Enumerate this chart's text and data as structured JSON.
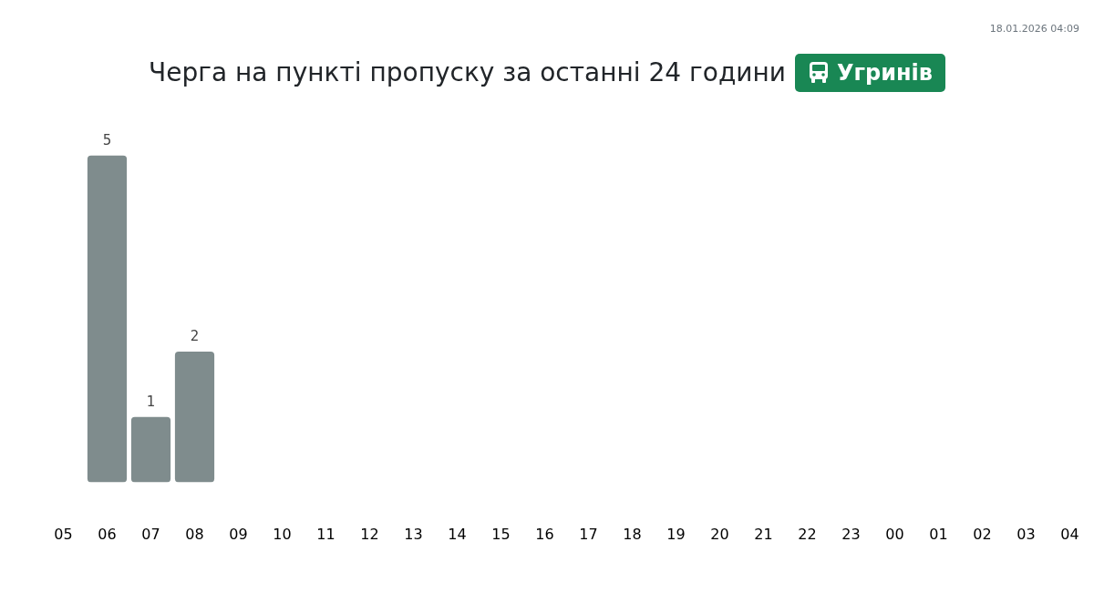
{
  "chart_data": {
    "type": "bar",
    "title": "Черга на пункті пропуску за останні 24 години",
    "subtitle": "Угринів",
    "annotations": [
      "18.01.2026 04:09"
    ],
    "categories": [
      "05",
      "06",
      "07",
      "08",
      "09",
      "10",
      "11",
      "12",
      "13",
      "14",
      "15",
      "16",
      "17",
      "18",
      "19",
      "20",
      "21",
      "22",
      "23",
      "00",
      "01",
      "02",
      "03",
      "04"
    ],
    "values": [
      null,
      5,
      1,
      2,
      null,
      null,
      null,
      null,
      null,
      null,
      null,
      null,
      null,
      null,
      null,
      null,
      null,
      null,
      null,
      null,
      null,
      null,
      null,
      null
    ],
    "color": "#7f8c8d",
    "data_labels": true,
    "tick_labels": "x"
  }
}
